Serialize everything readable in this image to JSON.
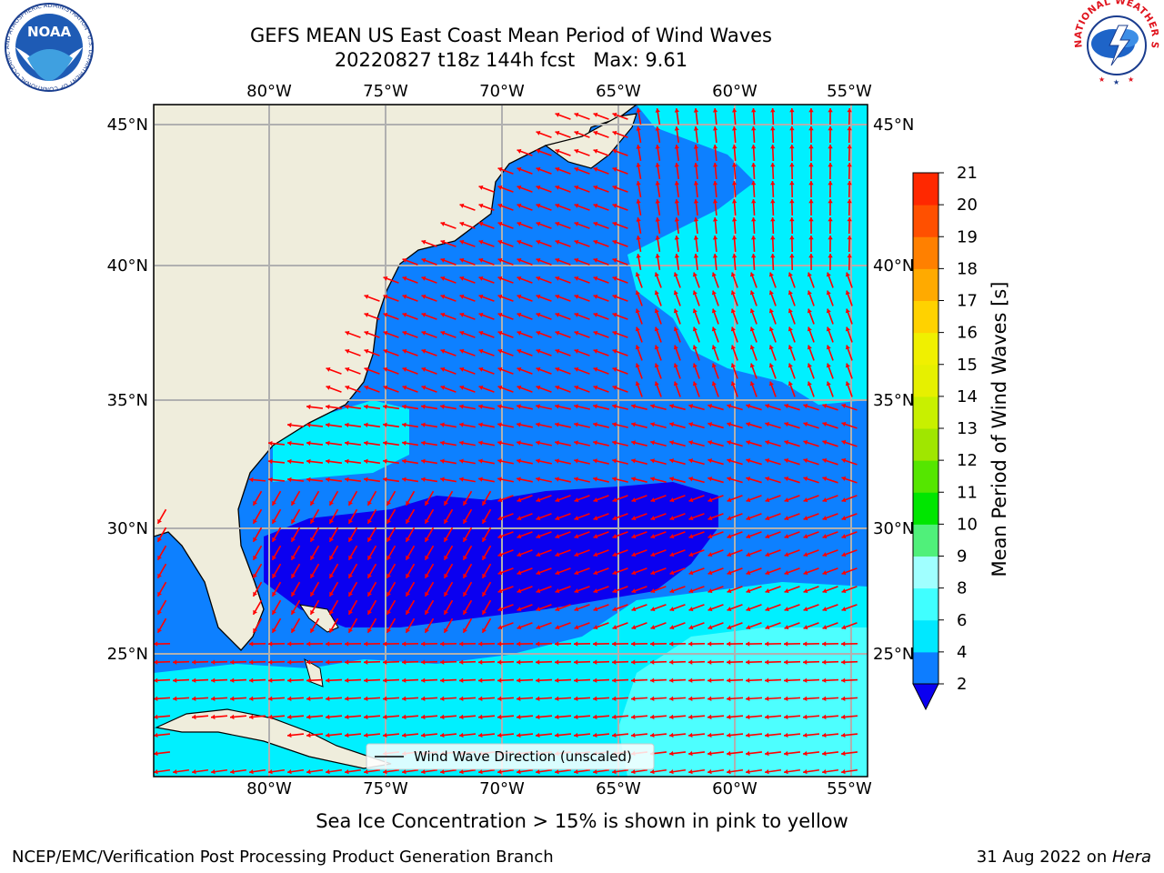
{
  "title": {
    "line1": "GEFS MEAN US East Coast Mean Period of Wind Waves",
    "line2": "20220827 t18z 144h fcst   Max: 9.61"
  },
  "subtitle": "Sea Ice Concentration > 15% is shown in pink to yellow",
  "footer": {
    "left": "NCEP/EMC/Verification Post Processing Product Generation Branch",
    "date": "31 Aug 2022 on ",
    "host": "Hera"
  },
  "logos": {
    "noaa": "NOAA",
    "noaa_ring": "NATIONAL OCEANIC AND ATMOSPHERIC ADMINISTRATION · U.S. DEPARTMENT OF COMMERCE ·",
    "nws_ring": "NATIONAL WEATHER SERVICE"
  },
  "map": {
    "lon_labels": [
      "80°W",
      "75°W",
      "70°W",
      "65°W",
      "60°W",
      "55°W"
    ],
    "lat_labels": [
      "45°N",
      "40°N",
      "35°N",
      "30°N",
      "25°N"
    ],
    "legend_label": "Wind Wave Direction (unscaled)",
    "colors": {
      "land": "#efeddc",
      "band_0_2": "#0b00f0",
      "band_2_4": "#0d80ff",
      "band_4_6": "#00f0ff",
      "band_6_8": "#4dffff",
      "arrow": "#ff0000"
    }
  },
  "colorbar": {
    "label": "Mean Period of Wind Waves [s]",
    "ticks": [
      "2",
      "4",
      "6",
      "8",
      "9",
      "10",
      "11",
      "12",
      "13",
      "14",
      "15",
      "16",
      "17",
      "18",
      "19",
      "20",
      "21"
    ],
    "colors": [
      "#0d7dff",
      "#00e8ff",
      "#40ffff",
      "#a0ffff",
      "#50f07a",
      "#00e600",
      "#55e600",
      "#a0e600",
      "#c8f000",
      "#e6f000",
      "#f0f000",
      "#ffd200",
      "#ffaa00",
      "#ff8000",
      "#ff5000",
      "#ff2800",
      "#ff0000"
    ],
    "under_color": "#0b00f0"
  }
}
